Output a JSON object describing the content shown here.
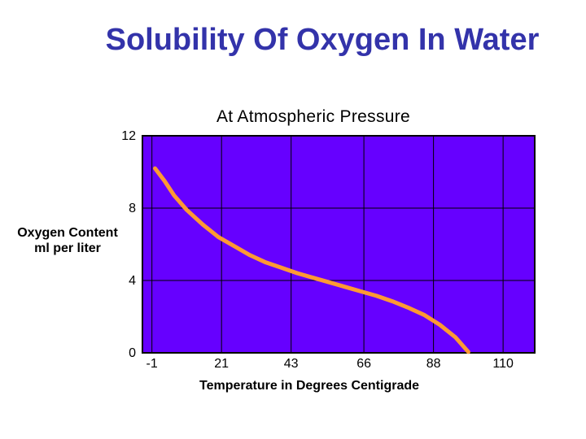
{
  "title": "Solubility Of Oxygen In Water",
  "chart_data": {
    "type": "line",
    "subtitle": "At Atmospheric Pressure",
    "ylabel_lines": [
      "Oxygen Content",
      "ml per liter"
    ],
    "xlabel": "Temperature in Degrees Centigrade",
    "x_ticks": [
      "-1",
      "21",
      "43",
      "66",
      "88",
      "110"
    ],
    "x_tick_values": [
      -1,
      21,
      43,
      66,
      88,
      110
    ],
    "y_ticks": [
      "0",
      "4",
      "8",
      "12"
    ],
    "y_tick_values": [
      0,
      4,
      8,
      12
    ],
    "xlim": [
      -4,
      120
    ],
    "ylim": [
      0,
      12
    ],
    "grid": true,
    "plot_background": "#6600ff",
    "series": [
      {
        "color": "#ff9933",
        "x": [
          0,
          3,
          6,
          10,
          15,
          20,
          25,
          30,
          35,
          40,
          45,
          50,
          55,
          60,
          65,
          70,
          75,
          80,
          85,
          90,
          95,
          99
        ],
        "y": [
          10.2,
          9.5,
          8.7,
          7.9,
          7.1,
          6.4,
          5.9,
          5.4,
          5.0,
          4.7,
          4.4,
          4.15,
          3.9,
          3.65,
          3.4,
          3.15,
          2.85,
          2.5,
          2.1,
          1.55,
          0.85,
          0.05
        ]
      }
    ]
  }
}
